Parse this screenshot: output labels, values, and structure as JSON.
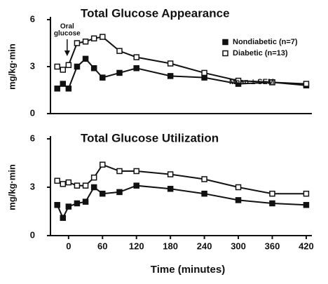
{
  "chart_data": [
    {
      "type": "line",
      "title": "Total Glucose Appearance",
      "y_label": "mg/kg·min",
      "x": [
        -20,
        -10,
        0,
        15,
        30,
        45,
        60,
        90,
        120,
        180,
        240,
        300,
        360,
        420
      ],
      "series": [
        {
          "name": "Nondiabetic (n=7)",
          "color": "#111111",
          "marker_fill": "#111111",
          "values": [
            1.6,
            1.9,
            1.6,
            3.0,
            3.5,
            2.9,
            2.3,
            2.6,
            2.9,
            2.4,
            2.3,
            1.9,
            2.0,
            1.8
          ]
        },
        {
          "name": "Diabetic (n=13)",
          "color": "#111111",
          "marker_fill": "#ffffff",
          "values": [
            3.0,
            2.8,
            3.1,
            4.5,
            4.6,
            4.8,
            4.9,
            4.0,
            3.6,
            3.2,
            2.6,
            2.1,
            2.0,
            1.9
          ]
        }
      ],
      "legend_note": "Mean ± SEM",
      "annotation": {
        "lines": [
          "Oral",
          "glucose"
        ],
        "x": 0
      },
      "xlim": [
        -32,
        430
      ],
      "ylim": [
        0,
        6
      ],
      "yticks": [
        0,
        3,
        6
      ]
    },
    {
      "type": "line",
      "title": "Total Glucose Utilization",
      "y_label": "mg/kg·min",
      "x_label": "Time (minutes)",
      "x": [
        -20,
        -10,
        0,
        15,
        30,
        45,
        60,
        90,
        120,
        180,
        240,
        300,
        360,
        420
      ],
      "series": [
        {
          "name": "Nondiabetic",
          "color": "#111111",
          "marker_fill": "#111111",
          "values": [
            1.9,
            1.1,
            1.8,
            2.0,
            2.1,
            3.0,
            2.6,
            2.7,
            3.1,
            2.9,
            2.6,
            2.2,
            2.0,
            1.9
          ]
        },
        {
          "name": "Diabetic",
          "color": "#111111",
          "marker_fill": "#ffffff",
          "values": [
            3.4,
            3.2,
            3.3,
            3.1,
            3.1,
            3.6,
            4.4,
            4.0,
            4.0,
            3.8,
            3.5,
            3.0,
            2.6,
            2.6
          ]
        }
      ],
      "xlim": [
        -32,
        430
      ],
      "xticks": [
        0,
        60,
        120,
        180,
        240,
        300,
        360,
        420
      ],
      "ylim": [
        0,
        6
      ],
      "yticks": [
        0,
        3,
        6
      ]
    }
  ]
}
